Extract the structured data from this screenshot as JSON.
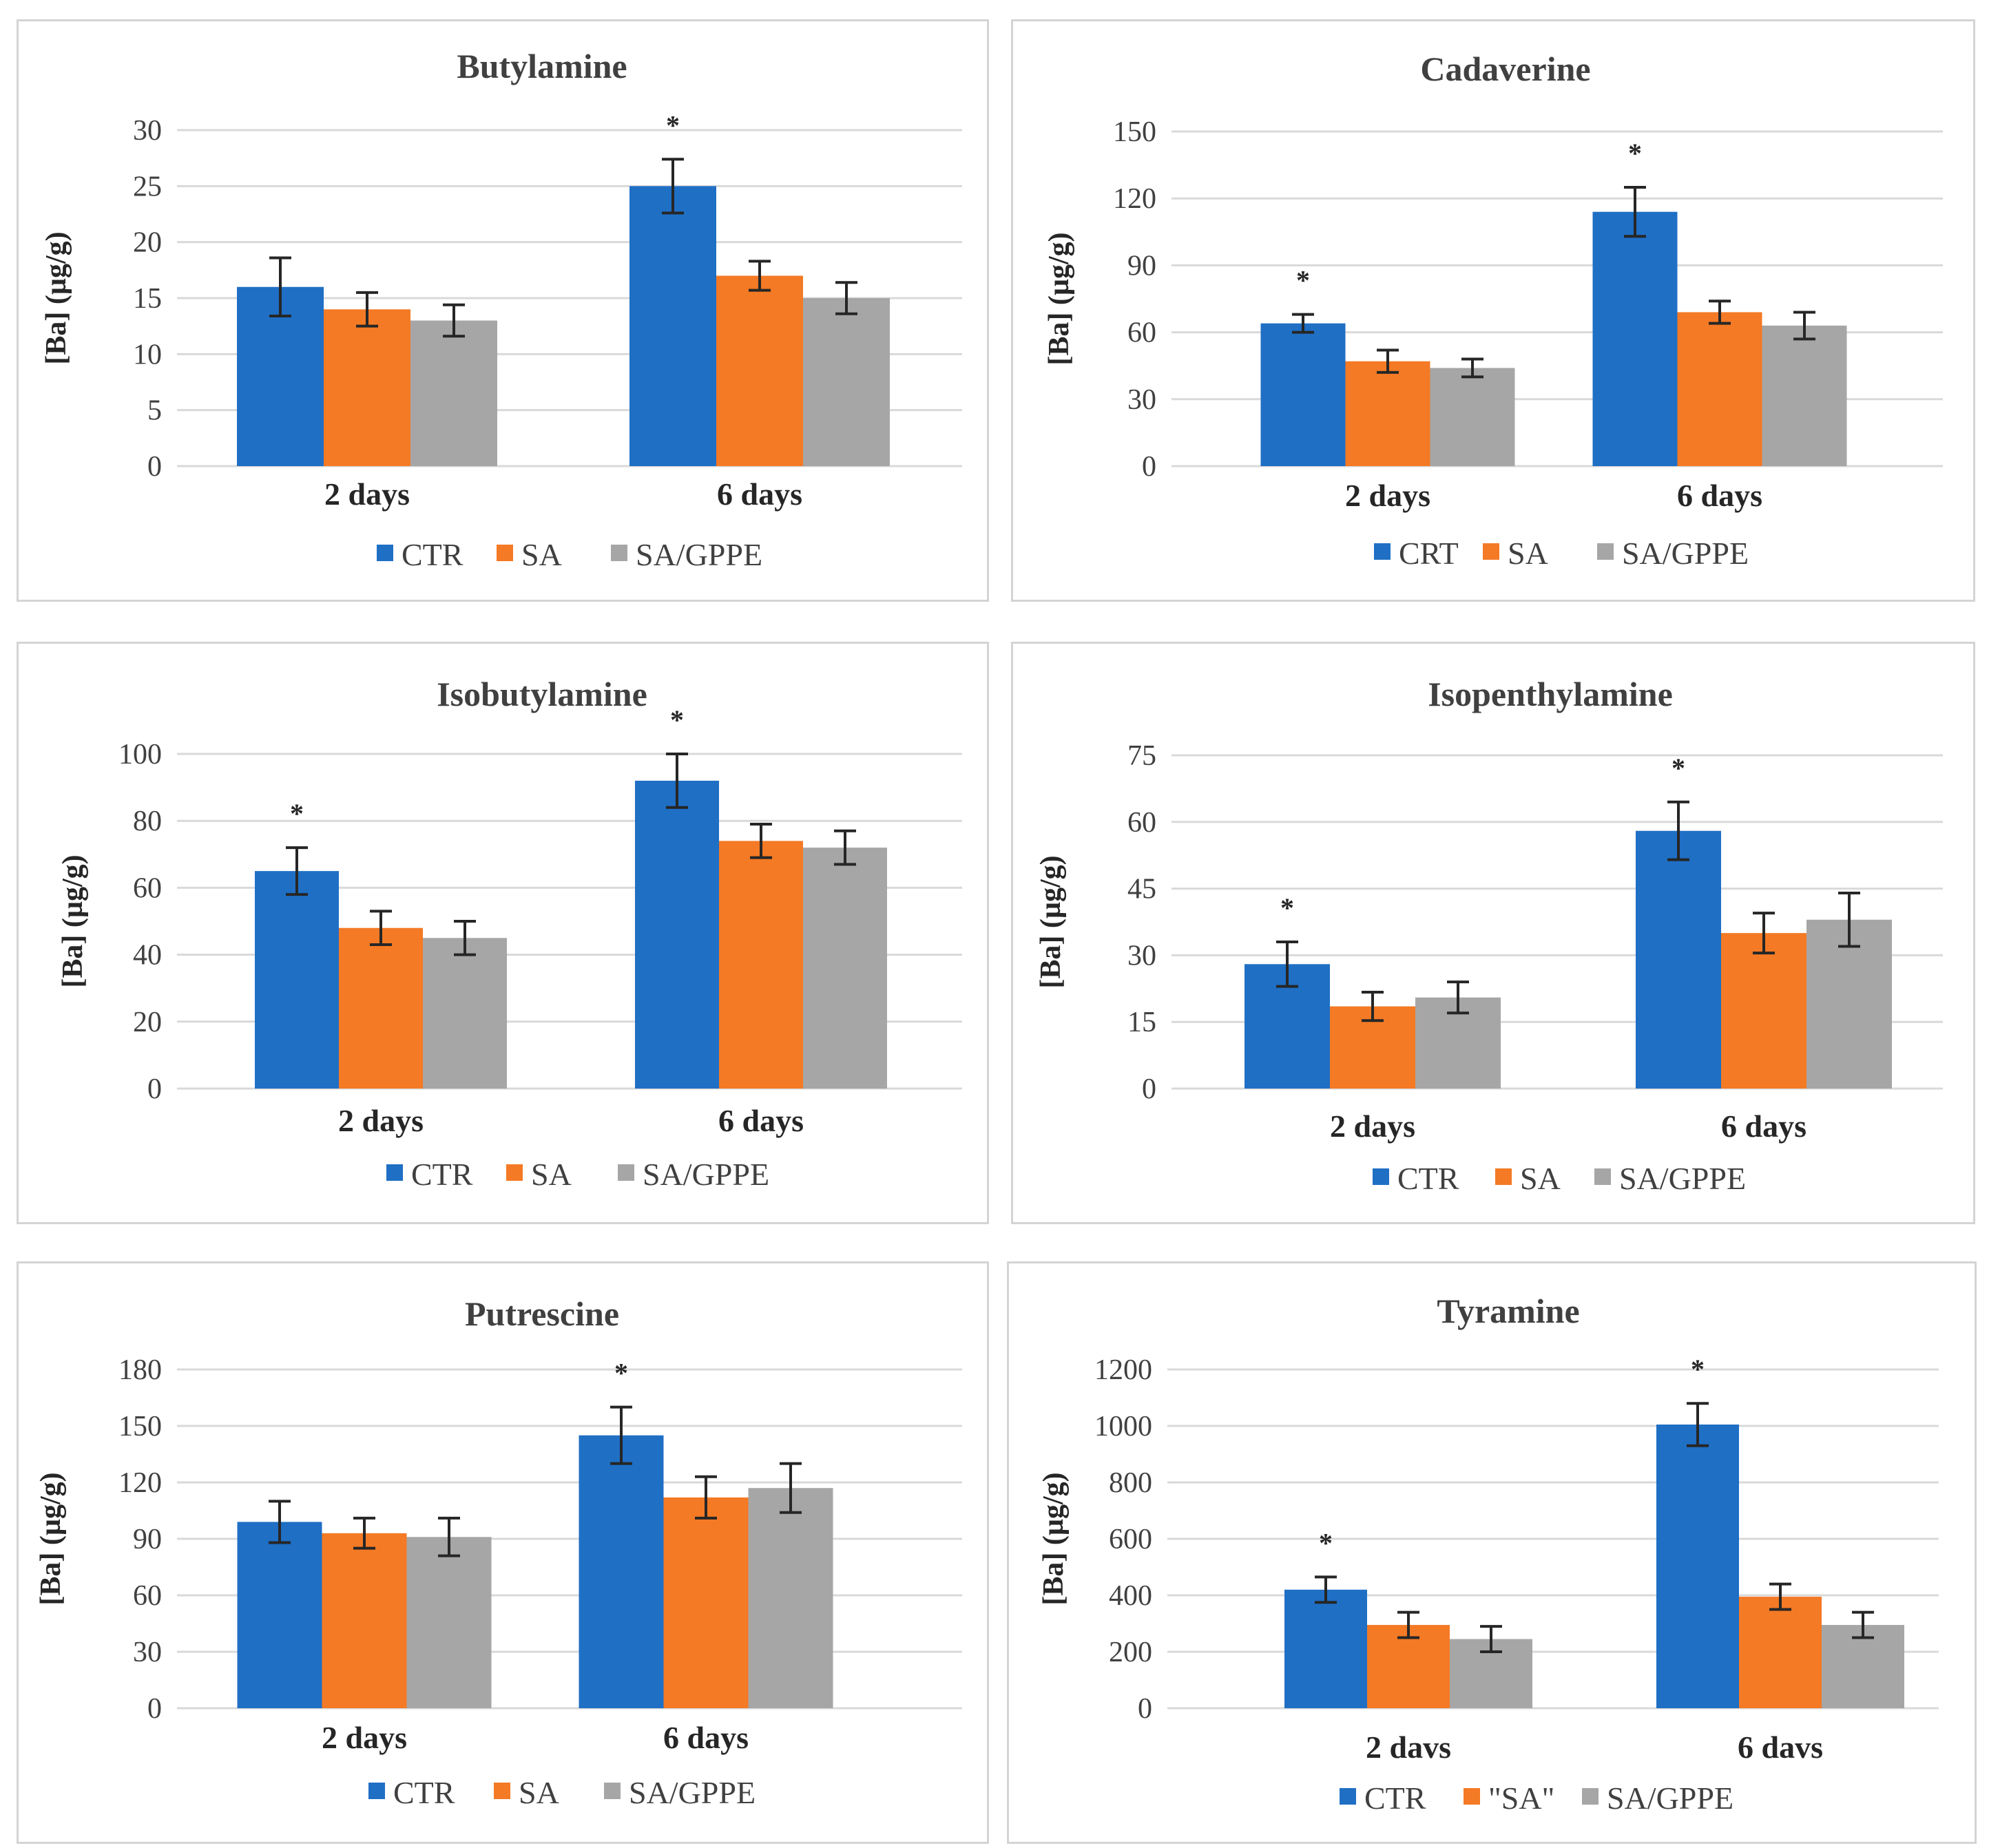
{
  "colors": {
    "ctr": "#1f6fc5",
    "sa": "#f47a25",
    "gppe": "#a6a6a6"
  },
  "chart_data": [
    {
      "type": "bar",
      "title": "Butylamine",
      "ylabel": "[Ba] (µg/g)",
      "categories": [
        "2 days",
        "6 days"
      ],
      "ylim": [
        0,
        30
      ],
      "yticks": [
        0,
        5,
        10,
        15,
        20,
        25,
        30
      ],
      "series": [
        {
          "name": "CTR",
          "values": [
            16,
            25
          ],
          "errors": [
            2.6,
            2.4
          ]
        },
        {
          "name": "SA",
          "values": [
            14,
            17
          ],
          "errors": [
            1.5,
            1.3
          ]
        },
        {
          "name": "SA/GPPE",
          "values": [
            13,
            15
          ],
          "errors": [
            1.4,
            1.4
          ]
        }
      ],
      "significance": [
        {
          "category": "6 days",
          "series": "CTR",
          "label": "*"
        }
      ]
    },
    {
      "type": "bar",
      "title": "Cadaverine",
      "ylabel": "[Ba] (µg/g)",
      "categories": [
        "2 days",
        "6 days"
      ],
      "ylim": [
        0,
        150
      ],
      "yticks": [
        0,
        30,
        60,
        90,
        120,
        150
      ],
      "series": [
        {
          "name": "CRT",
          "values": [
            64,
            114
          ],
          "errors": [
            4,
            11
          ]
        },
        {
          "name": "SA",
          "values": [
            47,
            69
          ],
          "errors": [
            5,
            5
          ]
        },
        {
          "name": "SA/GPPE",
          "values": [
            44,
            63
          ],
          "errors": [
            4,
            6
          ]
        }
      ],
      "significance": [
        {
          "category": "2 days",
          "series": "CRT",
          "label": "*"
        },
        {
          "category": "6 days",
          "series": "CRT",
          "label": "*"
        }
      ]
    },
    {
      "type": "bar",
      "title": "Isobutylamine",
      "ylabel": "[Ba] (µg/g)",
      "categories": [
        "2 days",
        "6 days"
      ],
      "ylim": [
        0,
        100
      ],
      "yticks": [
        0,
        20,
        40,
        60,
        80,
        100
      ],
      "series": [
        {
          "name": "CTR",
          "values": [
            65,
            92
          ],
          "errors": [
            7,
            8
          ]
        },
        {
          "name": "SA",
          "values": [
            48,
            74
          ],
          "errors": [
            5,
            5
          ]
        },
        {
          "name": "SA/GPPE",
          "values": [
            45,
            72
          ],
          "errors": [
            5,
            5
          ]
        }
      ],
      "significance": [
        {
          "category": "2 days",
          "series": "CTR",
          "label": "*"
        },
        {
          "category": "6 days",
          "series": "CTR",
          "label": "*"
        }
      ]
    },
    {
      "type": "bar",
      "title": "Isopenthylamine",
      "ylabel": "[Ba] (µg/g)",
      "categories": [
        "2 days",
        "6 days"
      ],
      "ylim": [
        0,
        75
      ],
      "yticks": [
        0,
        15,
        30,
        45,
        60,
        75
      ],
      "series": [
        {
          "name": "CTR",
          "values": [
            28,
            58
          ],
          "errors": [
            5,
            6.5
          ]
        },
        {
          "name": "SA",
          "values": [
            18.5,
            35
          ],
          "errors": [
            3.2,
            4.5
          ]
        },
        {
          "name": "SA/GPPE",
          "values": [
            20.5,
            38
          ],
          "errors": [
            3.5,
            6
          ]
        }
      ],
      "significance": [
        {
          "category": "2 days",
          "series": "CTR",
          "label": "*"
        },
        {
          "category": "6 days",
          "series": "CTR",
          "label": "*"
        }
      ]
    },
    {
      "type": "bar",
      "title": "Putrescine",
      "ylabel": "[Ba] (µg/g)",
      "categories": [
        "2 days",
        "6 days"
      ],
      "ylim": [
        0,
        180
      ],
      "yticks": [
        0,
        30,
        60,
        90,
        120,
        150,
        180
      ],
      "series": [
        {
          "name": "CTR",
          "values": [
            99,
            145
          ],
          "errors": [
            11,
            15
          ]
        },
        {
          "name": "SA",
          "values": [
            93,
            112
          ],
          "errors": [
            8,
            11
          ]
        },
        {
          "name": "SA/GPPE",
          "values": [
            91,
            117
          ],
          "errors": [
            10,
            13
          ]
        }
      ],
      "significance": [
        {
          "category": "6 days",
          "series": "CTR",
          "label": "*"
        }
      ]
    },
    {
      "type": "bar",
      "title": "Tyramine",
      "ylabel": "[Ba] (µg/g)",
      "categories": [
        "2 davs",
        "6 davs"
      ],
      "ylim": [
        0,
        1200
      ],
      "yticks": [
        0,
        200,
        400,
        600,
        800,
        1000,
        1200
      ],
      "series": [
        {
          "name": "CTR",
          "values": [
            420,
            1005
          ],
          "errors": [
            45,
            75
          ]
        },
        {
          "name": "\"SA\"",
          "values": [
            295,
            395
          ],
          "errors": [
            45,
            45
          ]
        },
        {
          "name": "SA/GPPE",
          "values": [
            245,
            295
          ],
          "errors": [
            45,
            45
          ]
        }
      ],
      "significance": [
        {
          "category": "2 davs",
          "series": "CTR",
          "label": "*"
        },
        {
          "category": "6 davs",
          "series": "CTR",
          "label": "*"
        }
      ]
    }
  ]
}
